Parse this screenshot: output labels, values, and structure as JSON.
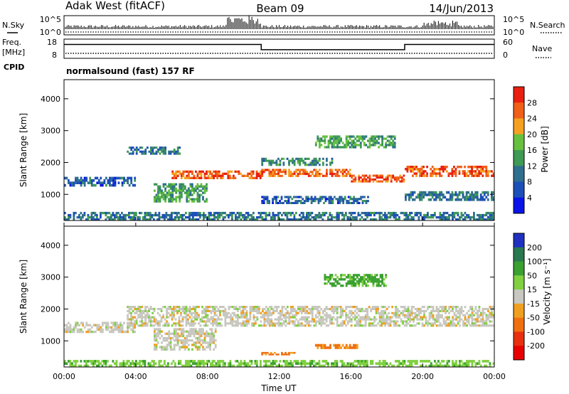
{
  "header": {
    "station": "Adak West (fitACF)",
    "beam": "Beam 09",
    "date": "14/Jun/2013"
  },
  "noise_panel": {
    "left_label": "N.Sky",
    "left_ticks": [
      "10^5",
      "10^0"
    ],
    "right_label": "N.Search",
    "right_ticks": [
      "10^5",
      "10^0"
    ]
  },
  "freq_panel": {
    "left_label_top": "Freq.",
    "left_label_unit": "[MHz]",
    "left_ticks": [
      "18",
      "8"
    ],
    "right_label": "Nave",
    "right_ticks": [
      "60",
      "0"
    ],
    "freq_steps": [
      {
        "from_hour": 0,
        "to_hour": 11,
        "level": 0.72
      },
      {
        "from_hour": 11,
        "to_hour": 19,
        "level": 0.45
      },
      {
        "from_hour": 19,
        "to_hour": 24,
        "level": 0.72
      }
    ]
  },
  "cpid_panel": {
    "label": "CPID",
    "text": "normalsound (fast) 157 RF"
  },
  "chart_data": [
    {
      "type": "heatmap",
      "name": "power",
      "ylabel": "Slant Range [km]",
      "yticks": [
        "4000",
        "3000",
        "2000",
        "1000"
      ],
      "ylim": [
        180,
        4600
      ],
      "xlim_hours": [
        0,
        24
      ],
      "colorbar_label": "Power [dB]",
      "colorbar_ticks": [
        "28",
        "24",
        "20",
        "16",
        "12",
        "8",
        "4"
      ],
      "colorbar_colors": [
        "#0a13e8",
        "#1c4fb8",
        "#2f6e8e",
        "#3e9a54",
        "#67c040",
        "#f5a020",
        "#f06018",
        "#e82010"
      ],
      "backscatter_bands": [
        {
          "x0": 6,
          "x1": 11,
          "y0": 1480,
          "y1": 1750,
          "value": 26
        },
        {
          "x0": 11,
          "x1": 16,
          "y0": 1550,
          "y1": 1800,
          "value": 26
        },
        {
          "x0": 16,
          "x1": 19,
          "y0": 1380,
          "y1": 1620,
          "value": 27
        },
        {
          "x0": 19,
          "x1": 24,
          "y0": 1550,
          "y1": 1900,
          "value": 27
        },
        {
          "x0": 0,
          "x1": 4,
          "y0": 1250,
          "y1": 1550,
          "value": 8
        },
        {
          "x0": 5,
          "x1": 8,
          "y0": 750,
          "y1": 1350,
          "value": 14
        },
        {
          "x0": 3.5,
          "x1": 6.5,
          "y0": 2250,
          "y1": 2500,
          "value": 9
        },
        {
          "x0": 11,
          "x1": 15,
          "y0": 1900,
          "y1": 2150,
          "value": 12
        },
        {
          "x0": 14,
          "x1": 18.5,
          "y0": 2450,
          "y1": 2850,
          "value": 15
        },
        {
          "x0": 11,
          "x1": 17,
          "y0": 700,
          "y1": 950,
          "value": 8
        },
        {
          "x0": 19,
          "x1": 24,
          "y0": 800,
          "y1": 1100,
          "value": 10
        },
        {
          "x0": 0,
          "x1": 24,
          "y0": 180,
          "y1": 450,
          "value": 10
        }
      ]
    },
    {
      "type": "heatmap",
      "name": "velocity",
      "ylabel": "Slant Range [km]",
      "yticks": [
        "4000",
        "3000",
        "2000",
        "1000"
      ],
      "ylim": [
        180,
        4600
      ],
      "xlim_hours": [
        0,
        24
      ],
      "colorbar_label": "Velocity [m s⁻¹]",
      "colorbar_ticks": [
        "200",
        "100",
        "50",
        "15",
        "-15",
        "-50",
        "-100",
        "-200"
      ],
      "colorbar_colors": [
        "#2030c0",
        "#2a7850",
        "#3aa030",
        "#80d040",
        "#c8c8c0",
        "#f0a020",
        "#f07010",
        "#e83010",
        "#e80000"
      ],
      "backscatter_bands": [
        {
          "x0": 3.5,
          "x1": 24,
          "y0": 1450,
          "y1": 2100,
          "value": 0
        },
        {
          "x0": 0,
          "x1": 4,
          "y0": 1250,
          "y1": 1600,
          "value": 0
        },
        {
          "x0": 5,
          "x1": 8.5,
          "y0": 700,
          "y1": 1400,
          "value": 0
        },
        {
          "x0": 14.5,
          "x1": 18,
          "y0": 2700,
          "y1": 3100,
          "value": 60
        },
        {
          "x0": 11,
          "x1": 13,
          "y0": 550,
          "y1": 650,
          "value": -60
        },
        {
          "x0": 14,
          "x1": 16.5,
          "y0": 750,
          "y1": 900,
          "value": -60
        },
        {
          "x0": 0,
          "x1": 24,
          "y0": 180,
          "y1": 400,
          "value": 40
        }
      ]
    }
  ],
  "time_axis": {
    "ticks": [
      "00:00",
      "04:00",
      "08:00",
      "12:00",
      "16:00",
      "20:00",
      "00:00"
    ],
    "label": "Time UT"
  }
}
